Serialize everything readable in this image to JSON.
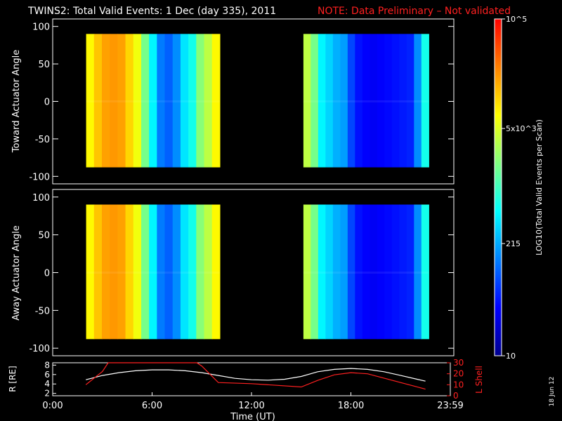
{
  "header": {
    "title": "TWINS2: Total Valid Events:  1 Dec (day 335), 2011",
    "note": "NOTE: Data Preliminary – Not validated",
    "note_color": "#ff2020"
  },
  "side_stamp": "18 Jun 12",
  "colorbar": {
    "label": "LOG10(Total Valid Events per Scan)",
    "ticks": [
      {
        "value": 100000,
        "label": "10^5"
      },
      {
        "value": 5000,
        "label": "5x10^3"
      },
      {
        "value": 215,
        "label": "215"
      },
      {
        "value": 10,
        "label": "10"
      }
    ],
    "range": [
      10,
      100000
    ],
    "scale": "log",
    "colors": [
      "#00008f",
      "#0000ff",
      "#0080ff",
      "#00ffff",
      "#80ff80",
      "#ffff00",
      "#ff8000",
      "#ff0000"
    ]
  },
  "chart_data": [
    {
      "type": "heatmap",
      "panel": "top",
      "ylabel": "Toward Actuator Angle",
      "xlim": [
        0,
        24
      ],
      "ylim": [
        -110,
        110
      ],
      "yticks": [
        100,
        50,
        0,
        -50,
        -100
      ],
      "data_angle_range": [
        -88,
        90
      ],
      "segments": [
        {
          "start": "02:00",
          "end": "10:00",
          "profile_levels": [
            0.72,
            0.78,
            0.82,
            0.83,
            0.82,
            0.76,
            0.7,
            0.56,
            0.42,
            0.28,
            0.25,
            0.3,
            0.4,
            0.45,
            0.58,
            0.64,
            0.72
          ]
        },
        {
          "start": "15:00",
          "end": "22:30",
          "profile_levels": [
            0.64,
            0.56,
            0.42,
            0.38,
            0.34,
            0.32,
            0.22,
            0.16,
            0.14,
            0.13,
            0.14,
            0.15,
            0.16,
            0.17,
            0.18,
            0.3,
            0.45
          ]
        }
      ]
    },
    {
      "type": "heatmap",
      "panel": "bottom",
      "ylabel": "Away Actuator Angle",
      "xlim": [
        0,
        24
      ],
      "ylim": [
        -110,
        110
      ],
      "yticks": [
        100,
        50,
        0,
        -50,
        -100
      ],
      "data_angle_range": [
        -88,
        90
      ],
      "segments": [
        {
          "start": "02:00",
          "end": "10:00",
          "profile_levels": [
            0.72,
            0.78,
            0.82,
            0.83,
            0.82,
            0.76,
            0.7,
            0.56,
            0.42,
            0.28,
            0.25,
            0.3,
            0.4,
            0.45,
            0.58,
            0.64,
            0.72
          ]
        },
        {
          "start": "15:00",
          "end": "22:30",
          "profile_levels": [
            0.64,
            0.56,
            0.42,
            0.38,
            0.34,
            0.32,
            0.22,
            0.16,
            0.14,
            0.13,
            0.14,
            0.15,
            0.16,
            0.17,
            0.18,
            0.3,
            0.45
          ]
        }
      ]
    },
    {
      "type": "line",
      "panel": "orbit",
      "xlabel": "Time (UT)",
      "xlim": [
        0,
        24
      ],
      "xticks": [
        {
          "value": 0,
          "label": "0:00"
        },
        {
          "value": 6,
          "label": "6:00"
        },
        {
          "value": 12,
          "label": "12:00"
        },
        {
          "value": 18,
          "label": "18:00"
        },
        {
          "value": 24,
          "label": "23:59"
        }
      ],
      "left_axis": {
        "label": "R [RE]",
        "ylim": [
          1.5,
          8.5
        ],
        "ticks": [
          2,
          4,
          6,
          8
        ]
      },
      "right_axis": {
        "label": "L Shell",
        "ylim": [
          0,
          30
        ],
        "ticks": [
          0,
          10,
          20,
          30
        ],
        "color": "#ff2020"
      },
      "series": [
        {
          "axis": "left",
          "color": "#ffffff",
          "x": [
            2.0,
            3.0,
            4.0,
            5.0,
            6.0,
            7.0,
            8.0,
            9.0,
            10.0,
            11.0,
            12.0,
            13.0,
            14.0,
            15.0,
            16.0,
            17.0,
            18.0,
            19.0,
            20.0,
            21.0,
            22.0,
            22.5
          ],
          "y": [
            4.9,
            5.8,
            6.4,
            6.8,
            7.0,
            7.0,
            6.8,
            6.4,
            5.8,
            5.2,
            4.9,
            4.8,
            5.0,
            5.6,
            6.6,
            7.1,
            7.3,
            7.1,
            6.6,
            5.8,
            5.0,
            4.6
          ]
        },
        {
          "axis": "right",
          "color": "#ff2020",
          "x": [
            2.0,
            3.0,
            3.35,
            8.7,
            9.0,
            10.0,
            12.0,
            15.0,
            16.0,
            17.0,
            18.0,
            19.0,
            20.0,
            21.0,
            22.5
          ],
          "y": [
            10,
            22,
            30,
            30,
            27,
            12,
            11,
            8,
            14,
            19,
            21,
            20,
            16,
            12,
            6
          ]
        }
      ]
    }
  ]
}
